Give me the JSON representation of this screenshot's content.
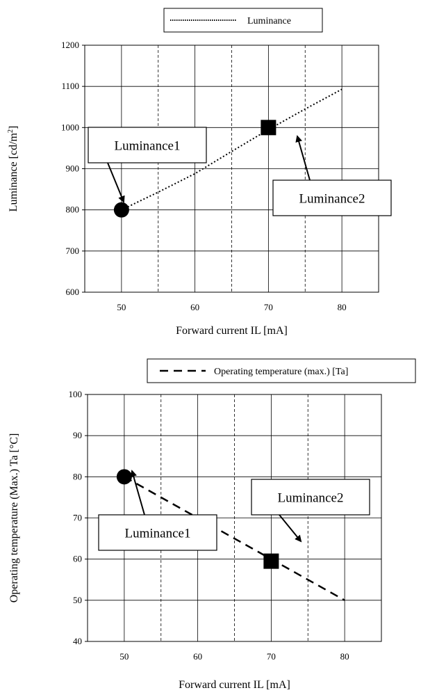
{
  "chart_data": [
    {
      "type": "line",
      "title": "",
      "xlabel": "Forward current IL [mA]",
      "ylabel": "Luminance [cd/m",
      "ylabel_superscript": "2",
      "ylabel_suffix": "]",
      "xlim": [
        45,
        85
      ],
      "ylim": [
        600,
        1200
      ],
      "x_ticks": [
        50,
        60,
        70,
        80
      ],
      "y_ticks": [
        600,
        700,
        800,
        900,
        1000,
        1100,
        1200
      ],
      "dashed_gridlines_x": [
        55,
        65,
        75
      ],
      "grid": true,
      "legend_position": "top",
      "series": [
        {
          "name": "Luminance",
          "style": "dotted",
          "x": [
            50,
            55,
            60,
            65,
            70,
            75,
            80
          ],
          "y": [
            800,
            843,
            888,
            942,
            995,
            1045,
            1093
          ]
        }
      ],
      "markers": [
        {
          "shape": "circle",
          "x": 50,
          "y": 800
        },
        {
          "shape": "square",
          "x": 70,
          "y": 1000
        }
      ],
      "callouts": [
        {
          "label": "Luminance1"
        },
        {
          "label": "Luminance2"
        }
      ]
    },
    {
      "type": "line",
      "title": "",
      "xlabel": "Forward current IL [mA]",
      "ylabel": "Operating temperature (Max.) Ta [°C]",
      "xlim": [
        45,
        85
      ],
      "ylim": [
        40,
        100
      ],
      "x_ticks": [
        50,
        60,
        70,
        80
      ],
      "y_ticks": [
        40,
        50,
        60,
        70,
        80,
        90,
        100
      ],
      "dashed_gridlines_x": [
        55,
        65,
        75
      ],
      "grid": true,
      "legend_position": "top",
      "series": [
        {
          "name": "Operating temperature (max.) [Ta]",
          "style": "dashed",
          "x": [
            50,
            80
          ],
          "y": [
            80,
            50
          ]
        }
      ],
      "markers": [
        {
          "shape": "circle",
          "x": 50,
          "y": 80
        },
        {
          "shape": "square",
          "x": 70,
          "y": 59.5
        }
      ],
      "callouts": [
        {
          "label": "Luminance1"
        },
        {
          "label": "Luminance2"
        }
      ]
    }
  ]
}
